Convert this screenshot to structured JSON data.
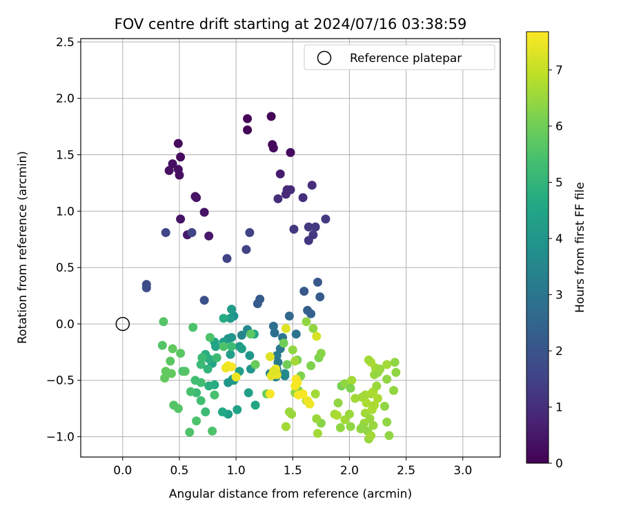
{
  "chart_data": {
    "type": "scatter",
    "title": "FOV centre drift starting at 2024/07/16 03:38:59",
    "xlabel": "Angular distance from reference (arcmin)",
    "ylabel": "Rotation from reference (arcmin)",
    "xlim": [
      -0.37,
      3.33
    ],
    "ylim": [
      -1.18,
      2.53
    ],
    "xticks": [
      "0.0",
      "0.5",
      "1.0",
      "1.5",
      "2.0",
      "2.5",
      "3.0"
    ],
    "yticks": [
      "−1.0",
      "−0.5",
      "0.0",
      "0.5",
      "1.0",
      "1.5",
      "2.0",
      "2.5"
    ],
    "xtick_values": [
      0,
      0.5,
      1.0,
      1.5,
      2.0,
      2.5,
      3.0
    ],
    "ytick_values": [
      -1.0,
      -0.5,
      0.0,
      0.5,
      1.0,
      1.5,
      2.0,
      2.5
    ],
    "grid": true,
    "legend": {
      "placement": "top-right",
      "label": "Reference platepar"
    },
    "reference_point": {
      "x": 0.0,
      "y": 0.0
    },
    "colorbar": {
      "label": "Hours from first FF file",
      "min": 0,
      "max": 7.68,
      "ticks": [
        "0",
        "1",
        "2",
        "3",
        "4",
        "5",
        "6",
        "7"
      ],
      "tick_values": [
        0,
        1,
        2,
        3,
        4,
        5,
        6,
        7
      ],
      "colormap": "viridis"
    },
    "points": [
      [
        0.49,
        1.6,
        0.2
      ],
      [
        0.44,
        1.42,
        0.3
      ],
      [
        0.51,
        1.48,
        0.2
      ],
      [
        0.41,
        1.36,
        0.3
      ],
      [
        0.49,
        1.37,
        0.3
      ],
      [
        0.5,
        1.32,
        0.3
      ],
      [
        1.1,
        1.82,
        0.1
      ],
      [
        1.1,
        1.72,
        0.1
      ],
      [
        1.31,
        1.84,
        0.1
      ],
      [
        1.32,
        1.59,
        0.2
      ],
      [
        1.33,
        1.56,
        0.2
      ],
      [
        1.48,
        1.52,
        0.2
      ],
      [
        0.64,
        1.13,
        0.4
      ],
      [
        0.65,
        1.12,
        0.4
      ],
      [
        0.72,
        0.99,
        0.4
      ],
      [
        0.51,
        0.93,
        0.4
      ],
      [
        0.57,
        0.79,
        0.5
      ],
      [
        0.76,
        0.78,
        0.5
      ],
      [
        1.39,
        1.33,
        0.6
      ],
      [
        1.45,
        1.19,
        0.9
      ],
      [
        1.48,
        1.19,
        0.9
      ],
      [
        1.44,
        1.15,
        0.9
      ],
      [
        1.37,
        1.11,
        1.0
      ],
      [
        1.59,
        1.12,
        1.0
      ],
      [
        1.67,
        1.23,
        1.0
      ],
      [
        1.51,
        0.84,
        1.2
      ],
      [
        1.64,
        0.86,
        1.3
      ],
      [
        1.7,
        0.86,
        1.3
      ],
      [
        1.68,
        0.79,
        1.3
      ],
      [
        1.64,
        0.74,
        1.2
      ],
      [
        1.79,
        0.93,
        1.3
      ],
      [
        0.38,
        0.81,
        1.6
      ],
      [
        0.61,
        0.81,
        1.6
      ],
      [
        1.12,
        0.81,
        1.5
      ],
      [
        1.09,
        0.66,
        1.5
      ],
      [
        0.92,
        0.58,
        1.5
      ],
      [
        0.21,
        0.35,
        1.8
      ],
      [
        0.21,
        0.32,
        1.8
      ],
      [
        1.6,
        0.29,
        2.1
      ],
      [
        1.72,
        0.37,
        2.1
      ],
      [
        1.74,
        0.24,
        2.2
      ],
      [
        0.72,
        0.21,
        1.9
      ],
      [
        1.21,
        0.22,
        2.2
      ],
      [
        1.19,
        0.18,
        2.2
      ],
      [
        1.63,
        0.12,
        2.3
      ],
      [
        1.66,
        0.09,
        2.4
      ],
      [
        1.47,
        0.07,
        2.6
      ],
      [
        1.33,
        -0.02,
        2.8
      ],
      [
        1.34,
        -0.08,
        2.8
      ],
      [
        1.41,
        -0.12,
        3.0
      ],
      [
        1.53,
        -0.09,
        2.9
      ],
      [
        1.39,
        -0.22,
        3.1
      ],
      [
        1.36,
        -0.28,
        3.2
      ],
      [
        1.37,
        -0.34,
        3.2
      ],
      [
        1.36,
        -0.4,
        3.3
      ],
      [
        1.3,
        -0.44,
        3.4
      ],
      [
        1.35,
        -0.47,
        3.4
      ],
      [
        1.43,
        -0.44,
        3.6
      ],
      [
        1.43,
        -0.46,
        3.6
      ],
      [
        1.05,
        -0.1,
        3.5
      ],
      [
        1.1,
        -0.05,
        3.6
      ],
      [
        0.98,
        0.07,
        3.8
      ],
      [
        0.95,
        0.05,
        4.2
      ],
      [
        0.96,
        0.13,
        4.2
      ],
      [
        0.89,
        0.05,
        4.7
      ],
      [
        0.93,
        -0.13,
        4.0
      ],
      [
        0.96,
        -0.12,
        4.0
      ],
      [
        0.89,
        -0.16,
        4.3
      ],
      [
        1.03,
        -0.2,
        4.1
      ],
      [
        1.12,
        -0.28,
        4.0
      ],
      [
        1.13,
        -0.4,
        4.0
      ],
      [
        1.16,
        -0.09,
        4.5
      ],
      [
        1.05,
        -0.22,
        4.3
      ],
      [
        0.95,
        -0.27,
        4.3
      ],
      [
        1.03,
        -0.42,
        4.3
      ],
      [
        0.97,
        -0.49,
        4.3
      ],
      [
        0.93,
        -0.52,
        4.0
      ],
      [
        0.98,
        -0.5,
        4.1
      ],
      [
        1.11,
        -0.61,
        4.3
      ],
      [
        1.17,
        -0.72,
        4.5
      ],
      [
        1.01,
        -0.76,
        4.4
      ],
      [
        0.93,
        -0.8,
        4.3
      ],
      [
        0.88,
        -0.78,
        4.6
      ],
      [
        0.81,
        -0.54,
        4.7
      ],
      [
        0.79,
        -0.35,
        4.4
      ],
      [
        0.82,
        -0.2,
        4.4
      ],
      [
        0.81,
        -0.16,
        4.5
      ],
      [
        0.73,
        -0.27,
        4.8
      ],
      [
        0.76,
        -0.31,
        4.8
      ],
      [
        0.7,
        -0.3,
        5.2
      ],
      [
        0.69,
        -0.36,
        5.2
      ],
      [
        0.75,
        -0.4,
        5.0
      ],
      [
        0.76,
        -0.55,
        4.8
      ],
      [
        0.69,
        -0.52,
        5.3
      ],
      [
        0.64,
        -0.5,
        5.3
      ],
      [
        0.65,
        -0.61,
        5.2
      ],
      [
        0.6,
        -0.6,
        5.4
      ],
      [
        0.69,
        -0.68,
        5.3
      ],
      [
        0.81,
        -0.63,
        5.4
      ],
      [
        0.65,
        -0.86,
        5.5
      ],
      [
        0.59,
        -0.96,
        5.5
      ],
      [
        0.79,
        -0.95,
        5.5
      ],
      [
        0.73,
        -0.78,
        5.2
      ],
      [
        0.62,
        -0.03,
        5.5
      ],
      [
        0.77,
        -0.12,
        5.5
      ],
      [
        0.83,
        -0.3,
        5.2
      ],
      [
        0.89,
        -0.2,
        5.5
      ],
      [
        0.96,
        -0.2,
        5.2
      ],
      [
        0.36,
        0.02,
        5.6
      ],
      [
        0.35,
        -0.19,
        5.6
      ],
      [
        0.44,
        -0.22,
        5.8
      ],
      [
        0.51,
        -0.26,
        5.7
      ],
      [
        0.42,
        -0.33,
        5.7
      ],
      [
        0.38,
        -0.42,
        5.8
      ],
      [
        0.37,
        -0.48,
        5.8
      ],
      [
        0.43,
        -0.44,
        5.8
      ],
      [
        0.53,
        -0.42,
        5.5
      ],
      [
        0.55,
        -0.42,
        5.6
      ],
      [
        0.45,
        -0.72,
        5.6
      ],
      [
        0.49,
        -0.75,
        5.6
      ],
      [
        1.17,
        -0.36,
        5.9
      ],
      [
        1.27,
        -0.62,
        5.9
      ],
      [
        1.13,
        -0.09,
        5.7
      ],
      [
        1.42,
        -0.17,
        6.0
      ],
      [
        1.45,
        -0.36,
        6.0
      ],
      [
        1.54,
        -0.32,
        6.1
      ],
      [
        1.57,
        -0.46,
        6.2
      ],
      [
        1.55,
        -0.59,
        6.3
      ],
      [
        1.52,
        -0.61,
        6.4
      ],
      [
        1.49,
        -0.8,
        6.5
      ],
      [
        1.44,
        -0.91,
        6.6
      ],
      [
        1.47,
        -0.78,
        6.5
      ],
      [
        1.62,
        -0.68,
        6.6
      ],
      [
        1.7,
        -0.62,
        6.6
      ],
      [
        1.75,
        -0.88,
        6.3
      ],
      [
        1.72,
        -0.97,
        6.6
      ],
      [
        1.71,
        -0.84,
        6.5
      ],
      [
        1.73,
        -0.3,
        6.2
      ],
      [
        1.75,
        -0.26,
        6.3
      ],
      [
        1.66,
        -0.37,
        6.2
      ],
      [
        1.5,
        -0.23,
        6.4
      ],
      [
        1.52,
        -0.33,
        6.6
      ],
      [
        1.62,
        0.02,
        6.4
      ],
      [
        1.68,
        -0.04,
        6.4
      ],
      [
        1.93,
        -0.55,
        6.1
      ],
      [
        1.96,
        -0.53,
        6.4
      ],
      [
        2.02,
        -0.5,
        6.6
      ],
      [
        2.01,
        -0.57,
        6.2
      ],
      [
        1.9,
        -0.7,
        6.4
      ],
      [
        1.87,
        -0.8,
        6.6
      ],
      [
        1.89,
        -0.81,
        6.7
      ],
      [
        1.92,
        -0.92,
        6.4
      ],
      [
        1.96,
        -0.85,
        6.6
      ],
      [
        2.0,
        -0.8,
        6.5
      ],
      [
        2.01,
        -0.91,
        6.4
      ],
      [
        2.05,
        -0.66,
        6.6
      ],
      [
        2.11,
        -0.65,
        6.6
      ],
      [
        2.14,
        -0.63,
        6.6
      ],
      [
        2.15,
        -0.7,
        6.7
      ],
      [
        2.14,
        -0.79,
        6.6
      ],
      [
        2.13,
        -0.88,
        6.5
      ],
      [
        2.11,
        -0.92,
        6.4
      ],
      [
        2.1,
        -0.93,
        6.4
      ],
      [
        2.16,
        -0.95,
        6.4
      ],
      [
        2.17,
        -1.02,
        6.5
      ],
      [
        2.19,
        -0.99,
        6.6
      ],
      [
        2.21,
        -0.9,
        6.5
      ],
      [
        2.18,
        -0.84,
        6.5
      ],
      [
        2.2,
        -0.76,
        6.7
      ],
      [
        2.22,
        -0.72,
        6.7
      ],
      [
        2.25,
        -0.66,
        6.7
      ],
      [
        2.19,
        -0.62,
        6.7
      ],
      [
        2.21,
        -0.6,
        6.7
      ],
      [
        2.24,
        -0.55,
        6.5
      ],
      [
        2.22,
        -0.45,
        6.5
      ],
      [
        2.25,
        -0.43,
        6.4
      ],
      [
        2.23,
        -0.39,
        6.6
      ],
      [
        2.27,
        -0.4,
        6.5
      ],
      [
        2.19,
        -0.34,
        6.7
      ],
      [
        2.17,
        -0.32,
        6.6
      ],
      [
        2.33,
        -0.36,
        6.6
      ],
      [
        2.4,
        -0.34,
        6.4
      ],
      [
        2.41,
        -0.43,
        6.4
      ],
      [
        2.33,
        -0.49,
        6.4
      ],
      [
        2.39,
        -0.59,
        6.4
      ],
      [
        2.31,
        -0.73,
        6.4
      ],
      [
        2.33,
        -0.87,
        6.4
      ],
      [
        2.35,
        -0.99,
        6.4
      ],
      [
        1.71,
        -0.11,
        7.2
      ],
      [
        1.3,
        -0.29,
        7.3
      ],
      [
        1.31,
        -0.46,
        7.4
      ],
      [
        1.35,
        -0.4,
        7.5
      ],
      [
        1.36,
        -0.45,
        7.4
      ],
      [
        1.33,
        -0.42,
        7.3
      ],
      [
        1.3,
        -0.62,
        7.6
      ],
      [
        0.93,
        -0.37,
        7.6
      ],
      [
        0.96,
        -0.38,
        7.6
      ],
      [
        0.91,
        -0.39,
        7.5
      ],
      [
        1.0,
        -0.47,
        7.5
      ],
      [
        1.53,
        -0.49,
        7.6
      ],
      [
        1.52,
        -0.55,
        7.6
      ],
      [
        1.55,
        -0.63,
        7.6
      ],
      [
        1.59,
        -0.62,
        7.6
      ],
      [
        1.65,
        -0.71,
        7.5
      ],
      [
        1.63,
        -0.68,
        7.5
      ],
      [
        1.54,
        -0.52,
        7.6
      ],
      [
        1.44,
        -0.04,
        7.3
      ]
    ]
  }
}
